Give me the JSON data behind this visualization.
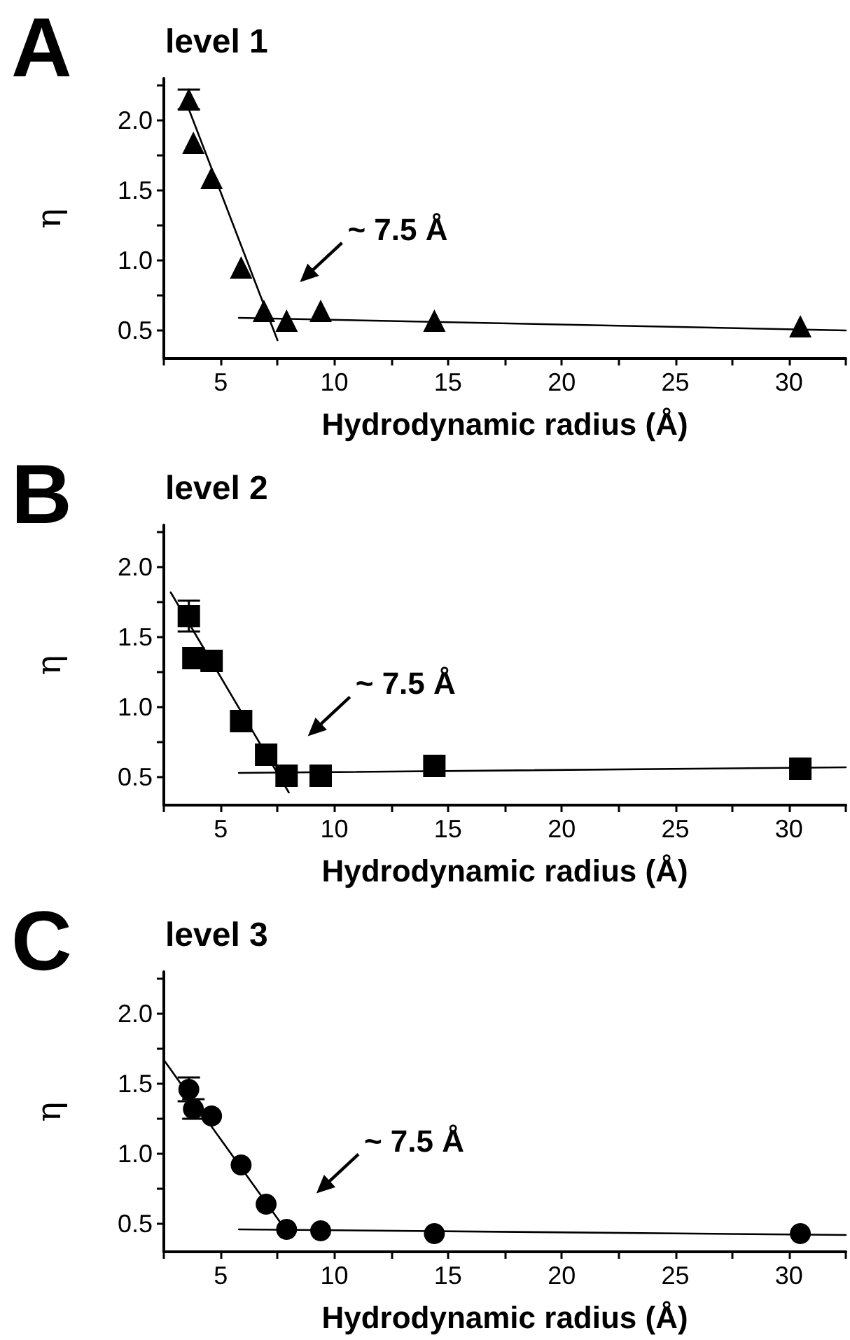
{
  "chart_data": [
    {
      "type": "scatter",
      "title": "level 1",
      "xlabel": "Hydrodynamic radius (Å)",
      "ylabel": "η",
      "annotations": [
        "A",
        "~ 7.5 Å"
      ],
      "xlim": [
        2.5,
        32.5
      ],
      "ylim": [
        0.3,
        2.3
      ],
      "xticks": [
        {
          "value": 2.5,
          "label": null
        },
        5,
        {
          "value": 7.5,
          "label": null
        },
        10,
        {
          "value": 12.5,
          "label": null
        },
        15,
        {
          "value": 17.5,
          "label": null
        },
        20,
        {
          "value": 22.5,
          "label": null
        },
        25,
        {
          "value": 27.5,
          "label": null
        },
        30,
        {
          "value": 32.5,
          "label": null
        }
      ],
      "yticks": [
        {
          "value": 0.5,
          "label": "0.5"
        },
        {
          "value": 0.75,
          "label": null
        },
        {
          "value": 1,
          "label": "1.0"
        },
        {
          "value": 1.25,
          "label": null
        },
        {
          "value": 1.5,
          "label": "1.5"
        },
        {
          "value": 1.75,
          "label": null
        },
        {
          "value": 2,
          "label": "2.0"
        },
        {
          "value": 2.25,
          "label": null
        }
      ],
      "series": [
        {
          "color": "#000000",
          "marker": "triangle",
          "x": [
            3.6,
            3.8,
            4.6,
            5.9,
            6.9,
            7.9,
            9.4,
            14.4,
            30.5
          ],
          "values": [
            2.15,
            1.84,
            1.59,
            0.95,
            0.64,
            0.57,
            0.64,
            0.57,
            0.53
          ],
          "errors": [
            0.07,
            null,
            null,
            null,
            null,
            null,
            null,
            null,
            null
          ]
        },
        {
          "type": "line",
          "color": "#000000",
          "marker": "none",
          "x": [
            3.6,
            7.5
          ],
          "values": [
            2.08,
            0.43
          ]
        },
        {
          "type": "line",
          "color": "#000000",
          "marker": "none",
          "x": [
            5.8,
            32.5
          ],
          "values": [
            0.59,
            0.5
          ]
        }
      ]
    },
    {
      "type": "scatter",
      "title": "level 2",
      "xlabel": "Hydrodynamic radius (Å)",
      "ylabel": "η",
      "annotations": [
        "B",
        "~ 7.5 Å"
      ],
      "xlim": [
        2.5,
        32.5
      ],
      "ylim": [
        0.3,
        2.3
      ],
      "xticks": [
        {
          "value": 2.5,
          "label": null
        },
        5,
        {
          "value": 7.5,
          "label": null
        },
        10,
        {
          "value": 12.5,
          "label": null
        },
        15,
        {
          "value": 17.5,
          "label": null
        },
        20,
        {
          "value": 22.5,
          "label": null
        },
        25,
        {
          "value": 27.5,
          "label": null
        },
        30,
        {
          "value": 32.5,
          "label": null
        }
      ],
      "yticks": [
        {
          "value": 0.5,
          "label": "0.5"
        },
        {
          "value": 0.75,
          "label": null
        },
        {
          "value": 1,
          "label": "1.0"
        },
        {
          "value": 1.25,
          "label": null
        },
        {
          "value": 1.5,
          "label": "1.5"
        },
        {
          "value": 1.75,
          "label": null
        },
        {
          "value": 2,
          "label": "2.0"
        },
        {
          "value": 2.25,
          "label": null
        }
      ],
      "series": [
        {
          "color": "#000000",
          "marker": "square",
          "x": [
            3.6,
            3.8,
            4.6,
            5.9,
            7.0,
            7.9,
            9.4,
            14.4,
            30.5
          ],
          "values": [
            1.65,
            1.35,
            1.33,
            0.9,
            0.66,
            0.51,
            0.51,
            0.58,
            0.56
          ],
          "errors": [
            0.11,
            null,
            null,
            null,
            null,
            null,
            null,
            null,
            null
          ]
        },
        {
          "type": "line",
          "color": "#000000",
          "marker": "none",
          "x": [
            2.8,
            8.0
          ],
          "values": [
            1.82,
            0.39
          ]
        },
        {
          "type": "line",
          "color": "#000000",
          "marker": "none",
          "x": [
            5.8,
            32.5
          ],
          "values": [
            0.53,
            0.57
          ]
        }
      ]
    },
    {
      "type": "scatter",
      "title": "level 3",
      "xlabel": "Hydrodynamic radius (Å)",
      "ylabel": "η",
      "annotations": [
        "C",
        "~ 7.5 Å"
      ],
      "xlim": [
        2.5,
        32.5
      ],
      "ylim": [
        0.3,
        2.3
      ],
      "xticks": [
        {
          "value": 2.5,
          "label": null
        },
        5,
        {
          "value": 7.5,
          "label": null
        },
        10,
        {
          "value": 12.5,
          "label": null
        },
        15,
        {
          "value": 17.5,
          "label": null
        },
        20,
        {
          "value": 22.5,
          "label": null
        },
        25,
        {
          "value": 27.5,
          "label": null
        },
        30,
        {
          "value": 32.5,
          "label": null
        }
      ],
      "yticks": [
        {
          "value": 0.5,
          "label": "0.5"
        },
        {
          "value": 0.75,
          "label": null
        },
        {
          "value": 1,
          "label": "1.0"
        },
        {
          "value": 1.25,
          "label": null
        },
        {
          "value": 1.5,
          "label": "1.5"
        },
        {
          "value": 1.75,
          "label": null
        },
        {
          "value": 2,
          "label": "2.0"
        },
        {
          "value": 2.25,
          "label": null
        }
      ],
      "series": [
        {
          "color": "#000000",
          "marker": "circle",
          "x": [
            3.6,
            3.8,
            4.6,
            5.9,
            7.0,
            7.9,
            9.4,
            14.4,
            30.5
          ],
          "values": [
            1.46,
            1.32,
            1.27,
            0.92,
            0.64,
            0.46,
            0.45,
            0.43,
            0.43
          ],
          "errors": [
            0.085,
            0.07,
            null,
            null,
            null,
            null,
            null,
            null,
            null
          ]
        },
        {
          "type": "line",
          "color": "#000000",
          "marker": "none",
          "x": [
            2.5,
            7.8
          ],
          "values": [
            1.67,
            0.47
          ]
        },
        {
          "type": "line",
          "color": "#000000",
          "marker": "none",
          "x": [
            5.8,
            32.5
          ],
          "values": [
            0.46,
            0.42
          ]
        }
      ]
    }
  ]
}
